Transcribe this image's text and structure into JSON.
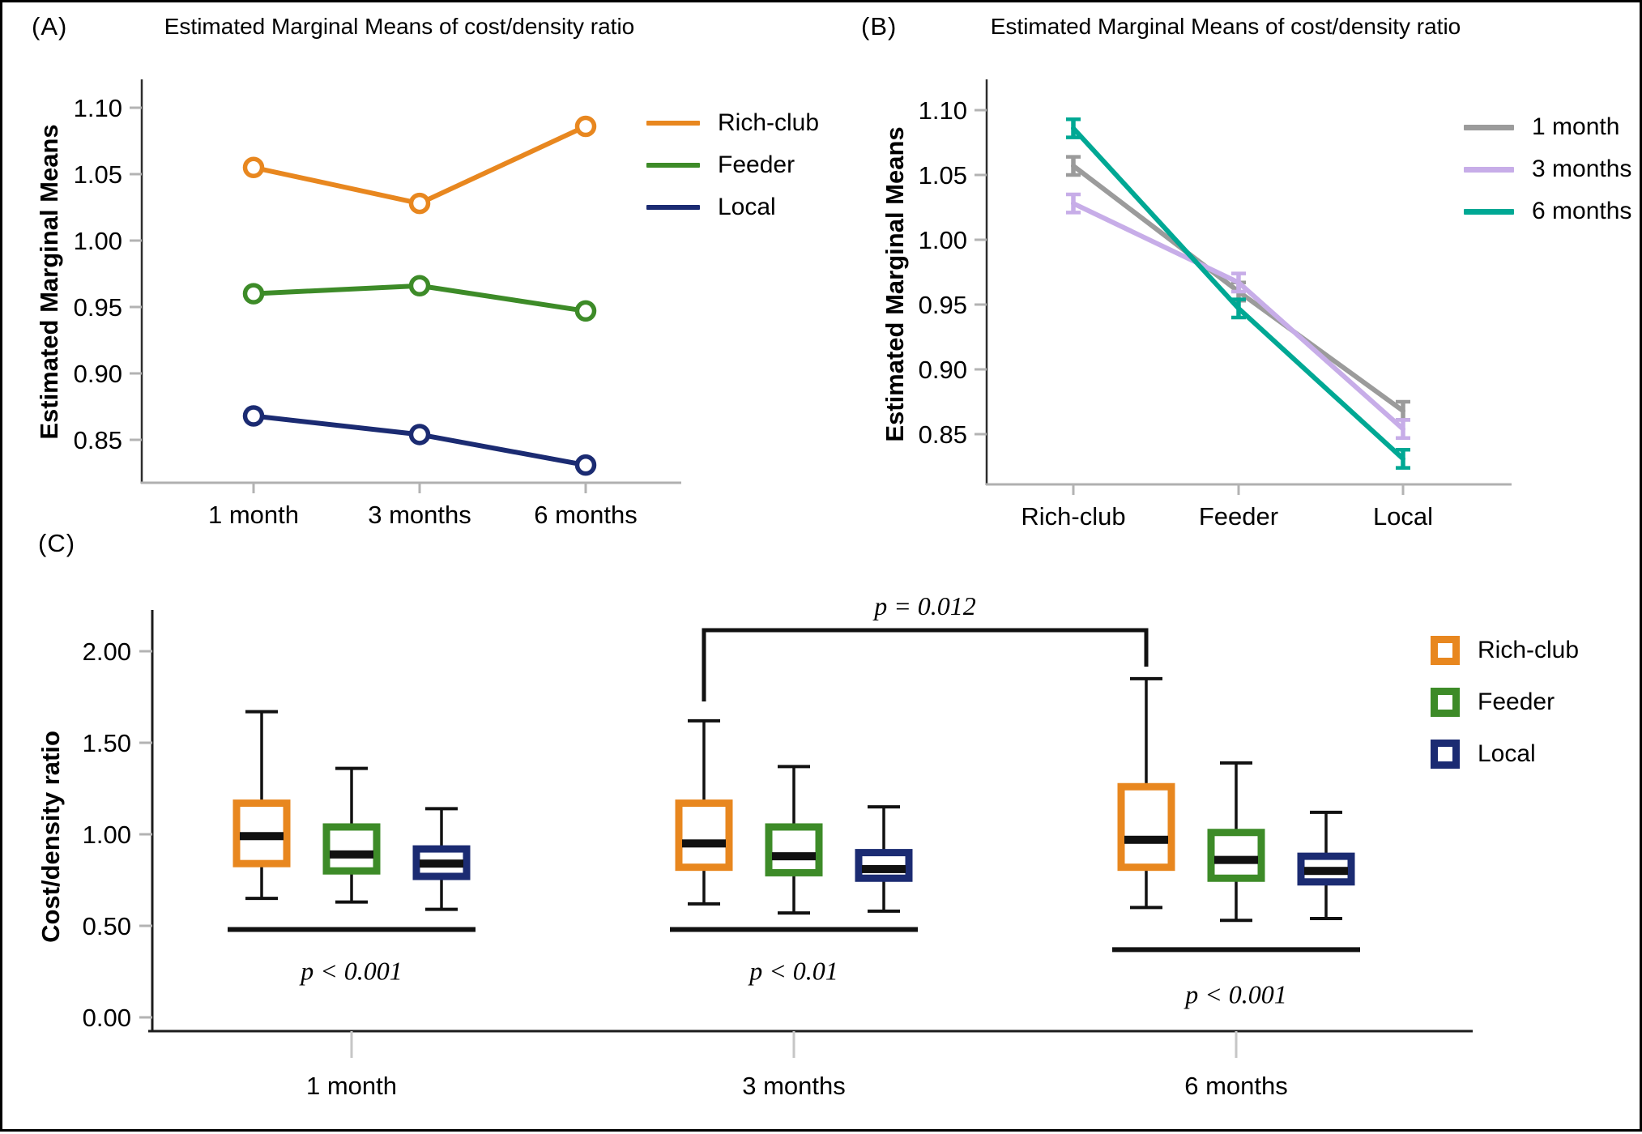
{
  "figure": {
    "background": "#ffffff",
    "border_color": "#000000"
  },
  "chart_data": [
    {
      "panel_label": "(A)",
      "type": "line",
      "title": "Estimated Marginal Means of cost/density ratio",
      "xlabel": "",
      "ylabel": "Estimated Marginal Means",
      "categories": [
        "1 month",
        "3 months",
        "6 months"
      ],
      "yticks": [
        1.1,
        1.05,
        1.0,
        0.95,
        0.9,
        0.85
      ],
      "ylim": [
        0.818,
        1.121
      ],
      "marker": "open-circle",
      "grid": false,
      "legend_position": "right",
      "series": [
        {
          "name": "Rich-club",
          "color": "#E8871F",
          "values": [
            1.055,
            1.028,
            1.086
          ]
        },
        {
          "name": "Feeder",
          "color": "#3D8B28",
          "values": [
            0.96,
            0.966,
            0.947
          ]
        },
        {
          "name": "Local",
          "color": "#1B2B72",
          "values": [
            0.868,
            0.854,
            0.831
          ]
        }
      ]
    },
    {
      "panel_label": "(B)",
      "type": "line",
      "title": "Estimated Marginal Means of cost/density ratio",
      "xlabel": "",
      "ylabel": "Estimated Marginal Means",
      "categories": [
        "Rich-club",
        "Feeder",
        "Local"
      ],
      "yticks": [
        1.1,
        1.05,
        1.0,
        0.95,
        0.9,
        0.85
      ],
      "ylim": [
        0.811,
        1.124
      ],
      "marker": "error-bar",
      "error_bar": 0.007,
      "grid": false,
      "legend_position": "right",
      "series": [
        {
          "name": "1 month",
          "color": "#9B9B9B",
          "values": [
            1.057,
            0.96,
            0.868
          ]
        },
        {
          "name": "3 months",
          "color": "#C7ADE8",
          "values": [
            1.028,
            0.967,
            0.854
          ]
        },
        {
          "name": "6 months",
          "color": "#00A894",
          "values": [
            1.086,
            0.947,
            0.831
          ]
        }
      ]
    },
    {
      "panel_label": "(C)",
      "type": "boxplot",
      "ylabel": "Cost/density ratio",
      "categories": [
        "1 month",
        "3 months",
        "6 months"
      ],
      "yticks": [
        2.0,
        1.5,
        1.0,
        0.5,
        0.0
      ],
      "ylim": [
        -0.08,
        2.2
      ],
      "grid": false,
      "legend_position": "right",
      "legend": [
        "Rich-club",
        "Feeder",
        "Local"
      ],
      "series_colors": {
        "Rich-club": "#E8871F",
        "Feeder": "#3D8B28",
        "Local": "#1B2B72"
      },
      "groups": [
        {
          "label": "1 month",
          "sig_label": "p < 0.001",
          "sig_level": 0.48,
          "boxes": [
            {
              "series": "Rich-club",
              "whisker_low": 0.65,
              "q1": 0.84,
              "median": 0.99,
              "q3": 1.17,
              "whisker_high": 1.67
            },
            {
              "series": "Feeder",
              "whisker_low": 0.63,
              "q1": 0.8,
              "median": 0.89,
              "q3": 1.04,
              "whisker_high": 1.36
            },
            {
              "series": "Local",
              "whisker_low": 0.59,
              "q1": 0.77,
              "median": 0.84,
              "q3": 0.92,
              "whisker_high": 1.14
            }
          ]
        },
        {
          "label": "3 months",
          "sig_label": "p < 0.01",
          "sig_level": 0.48,
          "boxes": [
            {
              "series": "Rich-club",
              "whisker_low": 0.62,
              "q1": 0.82,
              "median": 0.95,
              "q3": 1.17,
              "whisker_high": 1.62
            },
            {
              "series": "Feeder",
              "whisker_low": 0.57,
              "q1": 0.79,
              "median": 0.88,
              "q3": 1.04,
              "whisker_high": 1.37
            },
            {
              "series": "Local",
              "whisker_low": 0.58,
              "q1": 0.76,
              "median": 0.81,
              "q3": 0.9,
              "whisker_high": 1.15
            }
          ]
        },
        {
          "label": "6 months",
          "sig_label": "p < 0.001",
          "sig_level": 0.37,
          "boxes": [
            {
              "series": "Rich-club",
              "whisker_low": 0.6,
              "q1": 0.82,
              "median": 0.97,
              "q3": 1.26,
              "whisker_high": 1.85
            },
            {
              "series": "Feeder",
              "whisker_low": 0.53,
              "q1": 0.76,
              "median": 0.86,
              "q3": 1.01,
              "whisker_high": 1.39
            },
            {
              "series": "Local",
              "whisker_low": 0.54,
              "q1": 0.74,
              "median": 0.8,
              "q3": 0.88,
              "whisker_high": 1.12
            }
          ]
        }
      ],
      "bracket": {
        "label": "p = 0.012",
        "from_group": "3 months",
        "to_group": "6 months",
        "series": "Rich-club"
      }
    }
  ]
}
